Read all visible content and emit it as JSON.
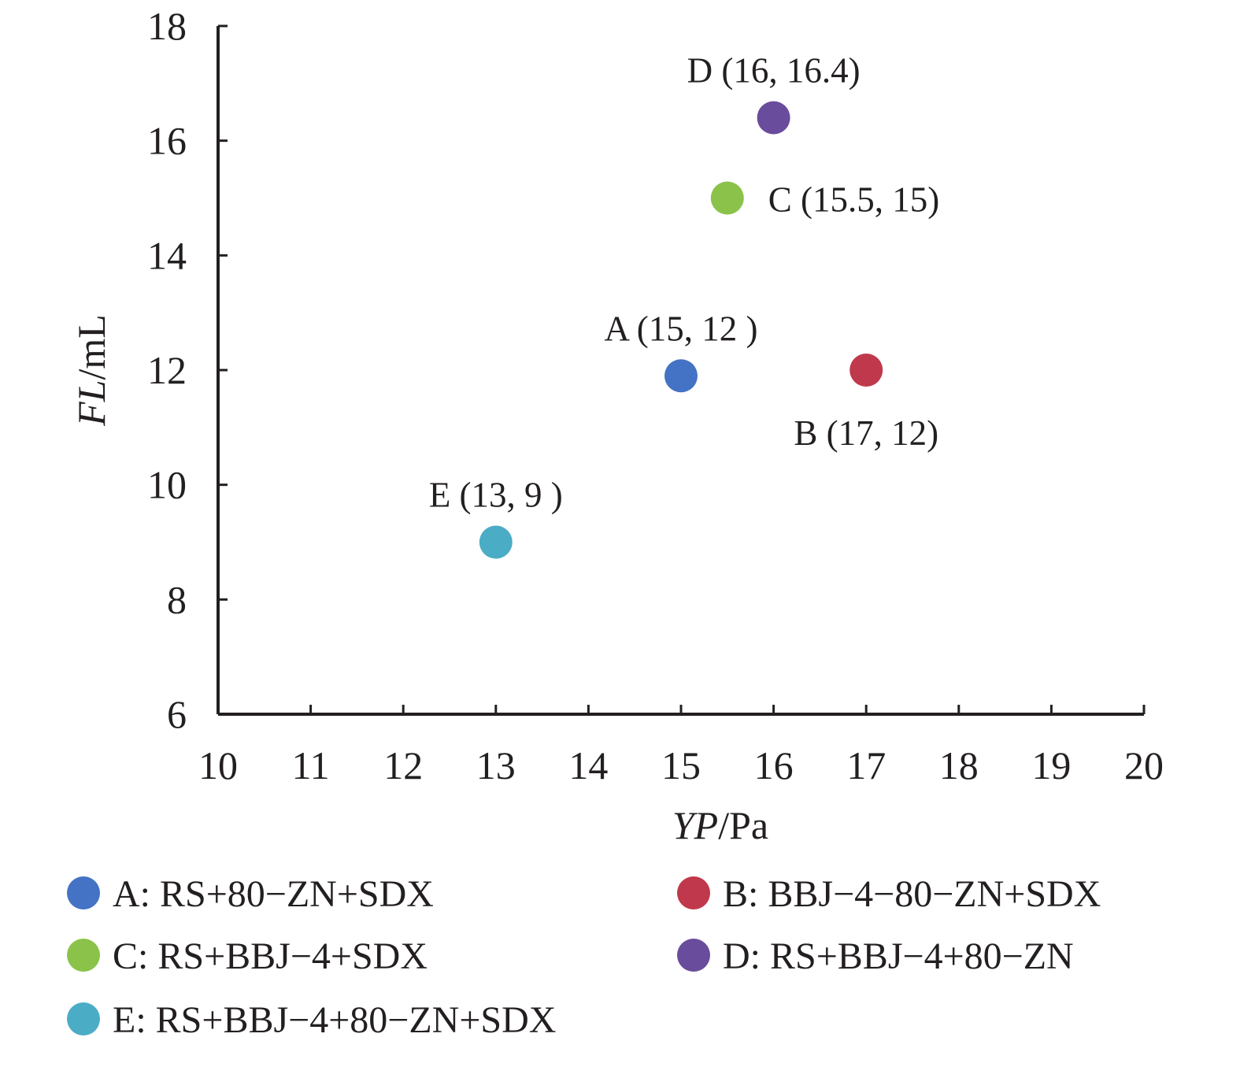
{
  "chart_data": {
    "type": "scatter",
    "xlabel": {
      "italic": "YP",
      "unit": "/Pa"
    },
    "ylabel": {
      "italic": "FL",
      "unit": "/mL"
    },
    "xlim": [
      10,
      20
    ],
    "ylim": [
      6,
      18
    ],
    "xticks": [
      "10",
      "11",
      "12",
      "13",
      "14",
      "15",
      "16",
      "17",
      "18",
      "19",
      "20"
    ],
    "yticks": [
      "6",
      "8",
      "10",
      "12",
      "14",
      "16",
      "18"
    ],
    "grid": false,
    "legend_position": "bottom",
    "points": [
      {
        "id": "A",
        "x": 15,
        "y": 11.9,
        "label": "A (15, 12 )",
        "label_side": "above",
        "color": "#4472c4",
        "legend": "A: RS+80−ZN+SDX"
      },
      {
        "id": "B",
        "x": 17,
        "y": 12,
        "label": "B (17, 12)",
        "label_side": "below",
        "color": "#c0384b",
        "legend": "B: BBJ−4−80−ZN+SDX"
      },
      {
        "id": "C",
        "x": 15.5,
        "y": 15,
        "label": "C (15.5, 15)",
        "label_side": "right",
        "color": "#8bc34a",
        "legend": "C: RS+BBJ−4+SDX"
      },
      {
        "id": "D",
        "x": 16,
        "y": 16.4,
        "label": "D (16, 16.4)",
        "label_side": "above",
        "color": "#6a4c9c",
        "legend": "D: RS+BBJ−4+80−ZN"
      },
      {
        "id": "E",
        "x": 13,
        "y": 9,
        "label": "E (13, 9 )",
        "label_side": "above",
        "color": "#4bacc6",
        "legend": "E: RS+BBJ−4+80−ZN+SDX"
      }
    ]
  }
}
